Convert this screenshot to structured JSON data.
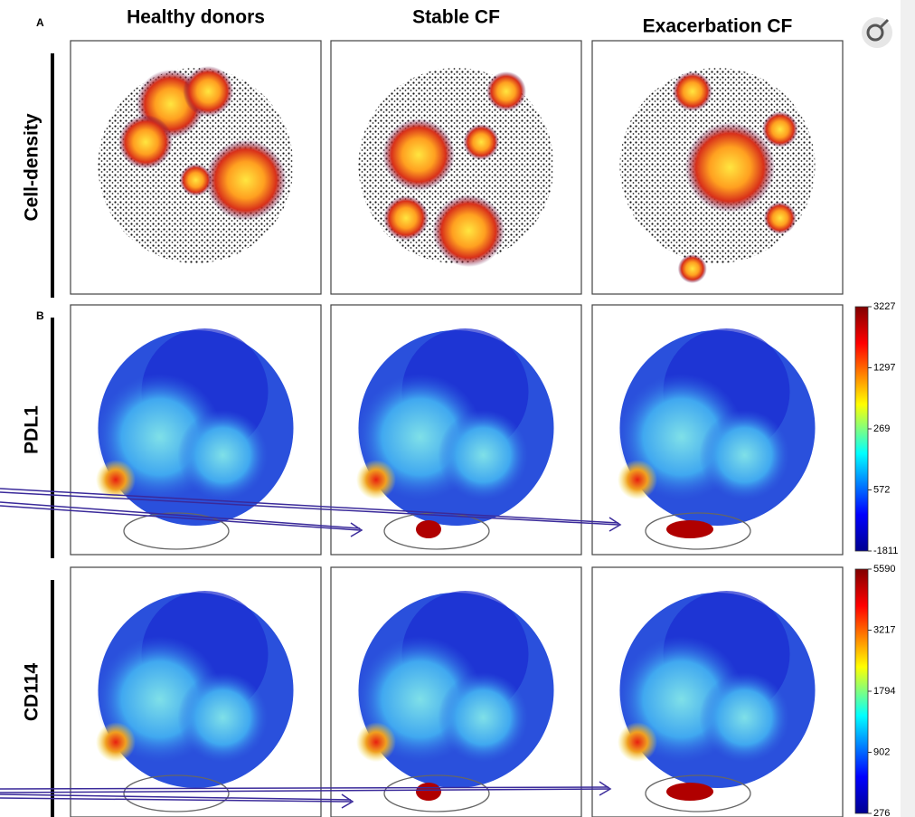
{
  "panel_labels": [
    "A",
    "B"
  ],
  "columns": [
    "Healthy donors",
    "Stable CF",
    "Exacerbation CF"
  ],
  "rows": [
    "Cell-density",
    "PDL1",
    "CD114"
  ],
  "colorbars": [
    {
      "ticks": [
        "3227",
        "1297",
        "269",
        "572",
        "-1811"
      ]
    },
    {
      "ticks": [
        "5590",
        "3217",
        "1794",
        "902",
        "276"
      ]
    }
  ]
}
